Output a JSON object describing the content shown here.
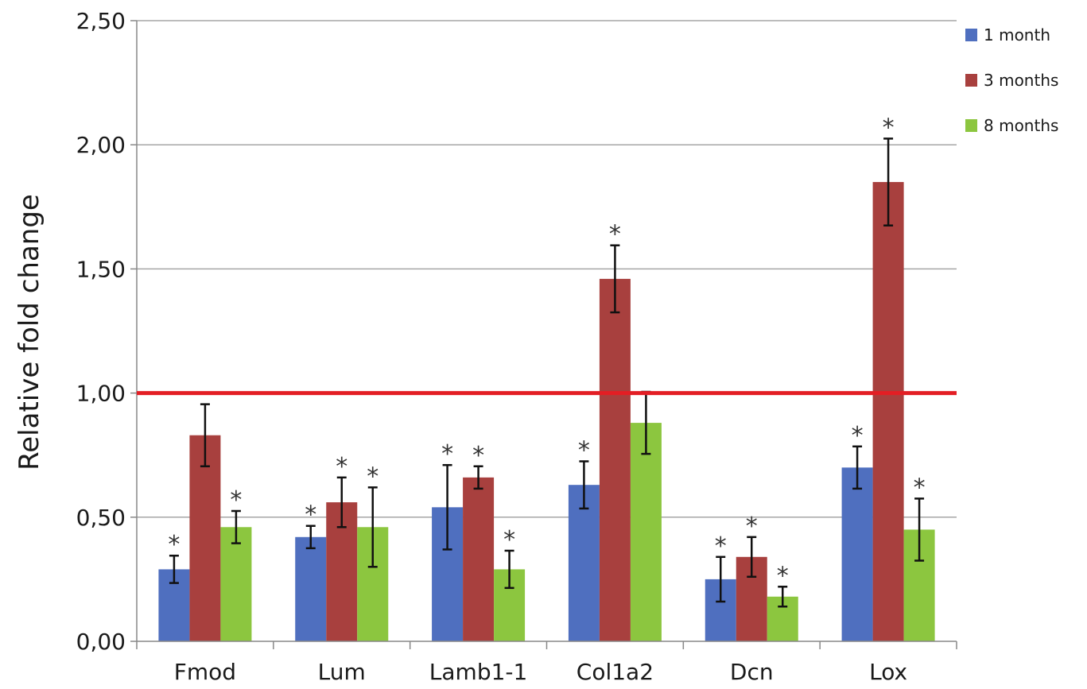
{
  "chart_data": {
    "type": "bar",
    "ylabel": "Relative fold change",
    "xlabel": "",
    "ylim": [
      0,
      2.5
    ],
    "yticks": [
      "0,00",
      "0,50",
      "1,00",
      "1,50",
      "2,00",
      "2,50"
    ],
    "ytick_values": [
      0,
      0.5,
      1.0,
      1.5,
      2.0,
      2.5
    ],
    "grid": true,
    "legend_position": "top-right",
    "reference_line": {
      "value": 1.0,
      "color": "#e31e24"
    },
    "significance_mark": "*",
    "categories": [
      "Fmod",
      "Lum",
      "Lamb1-1",
      "Col1a2",
      "Dcn",
      "Lox"
    ],
    "series": [
      {
        "name": "1 month",
        "color": "#4f6fbf",
        "values": [
          0.29,
          0.42,
          0.54,
          0.63,
          0.25,
          0.7
        ],
        "errors": [
          0.055,
          0.045,
          0.17,
          0.095,
          0.09,
          0.085
        ],
        "significant": [
          true,
          true,
          true,
          true,
          true,
          true
        ]
      },
      {
        "name": "3 months",
        "color": "#a8403e",
        "values": [
          0.83,
          0.56,
          0.66,
          1.46,
          0.34,
          1.85
        ],
        "errors": [
          0.125,
          0.1,
          0.045,
          0.135,
          0.08,
          0.175
        ],
        "significant": [
          false,
          true,
          true,
          true,
          true,
          true
        ]
      },
      {
        "name": "8 months",
        "color": "#8cc63f",
        "values": [
          0.46,
          0.46,
          0.29,
          0.88,
          0.18,
          0.45
        ],
        "errors": [
          0.065,
          0.16,
          0.075,
          0.125,
          0.04,
          0.125
        ],
        "significant": [
          true,
          true,
          true,
          false,
          true,
          true
        ]
      }
    ]
  }
}
